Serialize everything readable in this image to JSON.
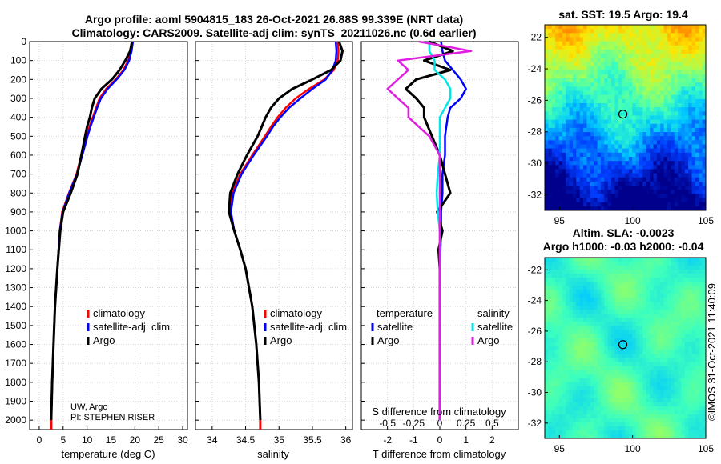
{
  "title_line1": "Argo profile: aoml 5904815_183 26-Oct-2021 26.88S 99.339E (NRT data)",
  "title_line2": "Climatology: CARS2009. Satellite-adj clim: synTS_20211026.nc (0.6d earlier)",
  "colors": {
    "climatology": "#ff0000",
    "satellite": "#0000ff",
    "argo": "#000000",
    "sal_satellite": "#00e5e5",
    "sal_argo": "#e020e0"
  },
  "chart_data": [
    {
      "type": "line",
      "name": "temperature",
      "xlabel": "temperature (deg C)",
      "ylabel": "",
      "xlim": [
        -2,
        31
      ],
      "ylim": [
        0,
        2050
      ],
      "y_reversed": true,
      "xticks": [
        "0",
        "5",
        "10",
        "15",
        "20",
        "25",
        "30"
      ],
      "yticks": [
        "0",
        "100",
        "200",
        "300",
        "400",
        "500",
        "600",
        "700",
        "800",
        "900",
        "1000",
        "1100",
        "1200",
        "1300",
        "1400",
        "1500",
        "1600",
        "1700",
        "1800",
        "1900",
        "2000"
      ],
      "legend": [
        "climatology",
        "satellite-adj. clim.",
        "Argo"
      ],
      "annotation1": "UW, Argo",
      "annotation2": "PI: STEPHEN RISER",
      "series": [
        {
          "name": "climatology",
          "depth": [
            0,
            50,
            100,
            150,
            200,
            250,
            300,
            350,
            400,
            450,
            500,
            600,
            700,
            800,
            900,
            1000,
            1200,
            1400,
            1600,
            1800,
            2000
          ],
          "values": [
            19.5,
            19.2,
            18.6,
            17.6,
            16.0,
            14.0,
            12.6,
            11.9,
            11.2,
            10.5,
            9.9,
            8.8,
            7.8,
            6.2,
            4.8,
            4.3,
            3.8,
            3.3,
            3.0,
            2.7,
            2.5
          ]
        },
        {
          "name": "satellite-adj. clim.",
          "depth": [
            0,
            50,
            100,
            150,
            200,
            250,
            300,
            350,
            400,
            450,
            500,
            600,
            700,
            800,
            900,
            1000,
            1200,
            1400,
            1600,
            1800,
            2000
          ],
          "values": [
            19.6,
            19.3,
            18.8,
            17.8,
            16.2,
            14.3,
            12.9,
            12.1,
            11.4,
            10.7,
            10.1,
            9.0,
            7.9,
            6.3,
            4.9,
            4.3,
            3.8,
            3.3,
            3.0,
            2.7,
            2.5
          ]
        },
        {
          "name": "Argo",
          "depth": [
            0,
            50,
            100,
            150,
            200,
            250,
            300,
            350,
            400,
            450,
            500,
            600,
            700,
            800,
            900,
            1000,
            1200,
            1400,
            1600,
            1800,
            2000
          ],
          "values": [
            19.4,
            19.0,
            18.0,
            16.8,
            15.2,
            13.0,
            11.6,
            11.0,
            10.6,
            10.0,
            9.6,
            8.8,
            8.0,
            6.6,
            5.0,
            4.4,
            3.8,
            3.3,
            3.0,
            2.7,
            2.5
          ]
        }
      ]
    },
    {
      "type": "line",
      "name": "salinity",
      "xlabel": "salinity",
      "xlim": [
        33.75,
        36.1
      ],
      "ylim": [
        0,
        2050
      ],
      "y_reversed": true,
      "xticks": [
        "34",
        "34.5",
        "35",
        "35.5",
        "36"
      ],
      "legend": [
        "climatology",
        "satellite-adj. clim.",
        "Argo"
      ],
      "series": [
        {
          "name": "climatology",
          "depth": [
            0,
            50,
            100,
            150,
            200,
            250,
            300,
            350,
            400,
            450,
            500,
            600,
            700,
            800,
            900,
            1000,
            1100,
            1200,
            1400,
            1600,
            1800,
            2000
          ],
          "values": [
            35.88,
            35.89,
            35.88,
            35.82,
            35.68,
            35.45,
            35.25,
            35.1,
            34.98,
            34.88,
            34.79,
            34.6,
            34.42,
            34.3,
            34.27,
            34.33,
            34.42,
            34.5,
            34.6,
            34.66,
            34.7,
            34.72
          ]
        },
        {
          "name": "satellite-adj. clim.",
          "depth": [
            0,
            50,
            100,
            150,
            200,
            250,
            300,
            350,
            400,
            450,
            500,
            600,
            700,
            800,
            900,
            1000,
            1100,
            1200,
            1400,
            1600,
            1800,
            2000
          ],
          "values": [
            35.85,
            35.86,
            35.85,
            35.8,
            35.7,
            35.5,
            35.32,
            35.15,
            35.02,
            34.91,
            34.82,
            34.62,
            34.44,
            34.32,
            34.28,
            34.33,
            34.42,
            34.5,
            34.6,
            34.66,
            34.7,
            34.72
          ]
        },
        {
          "name": "Argo",
          "depth": [
            0,
            50,
            100,
            150,
            200,
            250,
            300,
            350,
            400,
            450,
            500,
            600,
            700,
            800,
            900,
            1000,
            1100,
            1200,
            1400,
            1600,
            1800,
            2000
          ],
          "values": [
            35.9,
            35.95,
            35.92,
            35.78,
            35.5,
            35.2,
            35.0,
            34.88,
            34.8,
            34.74,
            34.68,
            34.52,
            34.38,
            34.27,
            34.25,
            34.33,
            34.42,
            34.5,
            34.6,
            34.66,
            34.7,
            34.72
          ]
        }
      ]
    },
    {
      "type": "line",
      "name": "difference",
      "xlabel": "T difference from climatology",
      "xlabel_top": "S difference from climatology",
      "xlim": [
        -3,
        3
      ],
      "ylim": [
        0,
        2050
      ],
      "y_reversed": true,
      "xticks": [
        "-2",
        "-1",
        "0",
        "1",
        "2"
      ],
      "xticks_top": [
        "-0.5",
        "-0.25",
        "0",
        "0.25",
        "0.5"
      ],
      "legend_temp_title": "temperature",
      "legend_sal_title": "salinity",
      "legend_temp": [
        "satellite",
        "Argo"
      ],
      "legend_sal": [
        "satellite",
        "Argo"
      ],
      "series": [
        {
          "name": "T satellite",
          "depth": [
            0,
            50,
            100,
            150,
            200,
            250,
            300,
            350,
            400,
            500,
            600,
            700,
            800,
            900,
            1000,
            1200,
            1400,
            1600,
            1800,
            2000
          ],
          "values": [
            0.05,
            0.1,
            0.2,
            0.5,
            0.8,
            1.0,
            0.8,
            0.4,
            0.3,
            0.2,
            0.2,
            0.1,
            0.1,
            0.05,
            0.05,
            0,
            0,
            0,
            0,
            0
          ]
        },
        {
          "name": "T Argo",
          "depth": [
            0,
            50,
            100,
            150,
            200,
            250,
            300,
            350,
            400,
            500,
            600,
            700,
            800,
            900,
            1000,
            1100,
            1200,
            1400,
            1600,
            1800,
            2000
          ],
          "values": [
            -0.4,
            0.5,
            -0.6,
            0.4,
            -0.9,
            -1.3,
            -0.9,
            -0.6,
            -0.6,
            -0.3,
            0,
            0.2,
            0.4,
            -0.1,
            0.1,
            -0.05,
            0,
            0,
            0,
            0,
            0
          ]
        },
        {
          "name": "S satellite",
          "depth": [
            0,
            50,
            100,
            150,
            200,
            250,
            300,
            350,
            400,
            500,
            600,
            700,
            800,
            900,
            1000,
            1200,
            1400,
            1600,
            1800,
            2000
          ],
          "values": [
            -0.1,
            -0.1,
            -0.05,
            -0.05,
            0.05,
            0.1,
            0.1,
            0.05,
            0,
            0,
            0,
            -0.02,
            -0.03,
            -0.02,
            0,
            0,
            0,
            0,
            0,
            0
          ]
        },
        {
          "name": "S Argo",
          "depth": [
            0,
            50,
            100,
            150,
            200,
            250,
            300,
            350,
            400,
            500,
            600,
            700,
            800,
            900,
            1000,
            1200,
            1400,
            1600,
            1800,
            2000
          ],
          "values": [
            -0.2,
            0.3,
            -0.4,
            -0.3,
            -0.4,
            -0.5,
            -0.4,
            -0.3,
            -0.3,
            -0.1,
            0,
            0,
            0,
            0,
            0,
            0,
            0,
            0,
            0,
            0
          ]
        }
      ]
    },
    {
      "type": "heatmap",
      "name": "sat-sst",
      "title": "sat. SST: 19.5 Argo: 19.4",
      "xlim": [
        94,
        105
      ],
      "ylim": [
        -33,
        -21.2
      ],
      "xticks": [
        "95",
        "100",
        "105"
      ],
      "yticks": [
        "-22",
        "-24",
        "-26",
        "-28",
        "-30",
        "-32"
      ],
      "marker": {
        "lon": 99.339,
        "lat": -26.88
      }
    },
    {
      "type": "heatmap",
      "name": "altim-sla",
      "title1": "Altim. SLA: -0.0023",
      "title2": "Argo h1000: -0.03 h2000: -0.04",
      "xlim": [
        94,
        105
      ],
      "ylim": [
        -33,
        -21.2
      ],
      "xticks": [
        "95",
        "100",
        "105"
      ],
      "yticks": [
        "-22",
        "-24",
        "-26",
        "-28",
        "-30",
        "-32"
      ],
      "marker": {
        "lon": 99.339,
        "lat": -26.88
      }
    }
  ],
  "watermark": "©IMOS 31-Oct-2021 11:40:09"
}
